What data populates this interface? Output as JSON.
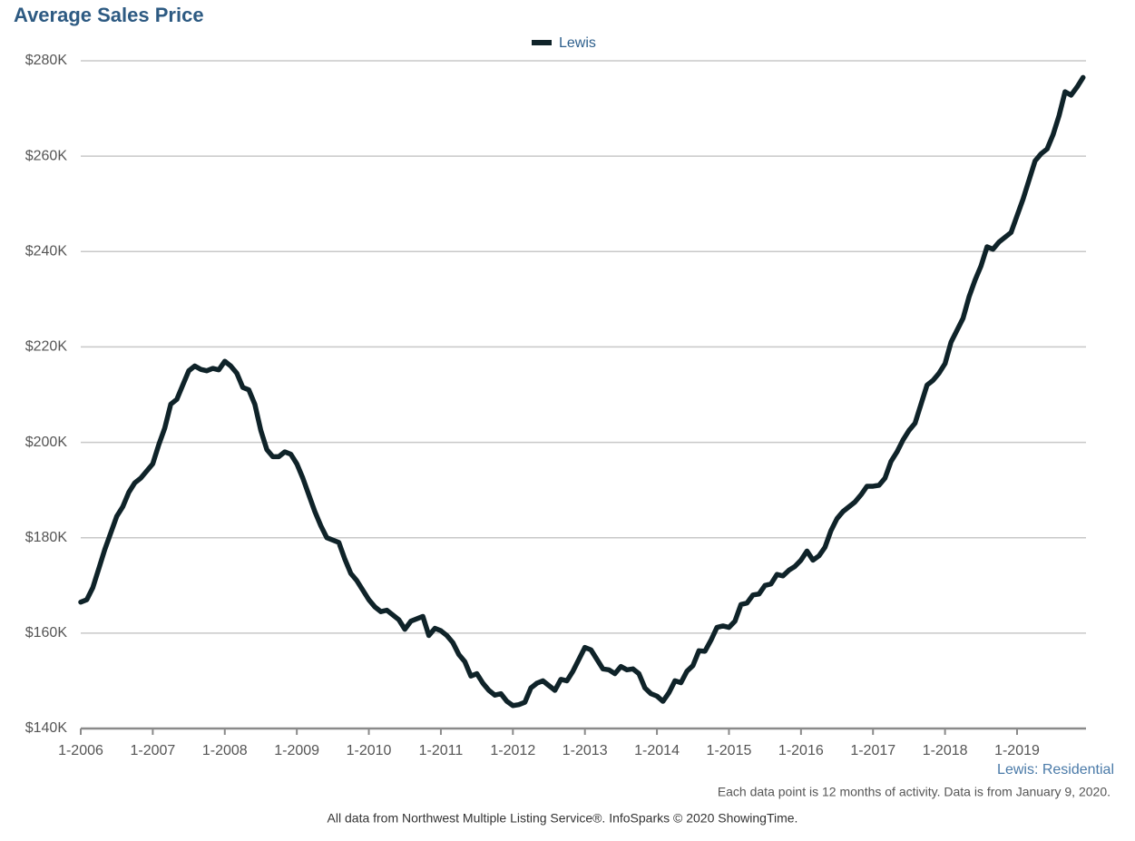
{
  "chart_data": {
    "type": "line",
    "title": "Average Sales Price",
    "subtitle": "Lewis: Residential",
    "annotations": [
      "Each data point is 12 months of activity. Data is from January 9, 2020.",
      "All data from Northwest Multiple Listing Service®. InfoSparks © 2020 ShowingTime."
    ],
    "categories": [
      "1-2006",
      null,
      null,
      null,
      null,
      null,
      null,
      null,
      null,
      null,
      null,
      null,
      "1-2007",
      null,
      null,
      null,
      null,
      null,
      null,
      null,
      null,
      null,
      null,
      null,
      "1-2008",
      null,
      null,
      null,
      null,
      null,
      null,
      null,
      null,
      null,
      null,
      null,
      "1-2009",
      null,
      null,
      null,
      null,
      null,
      null,
      null,
      null,
      null,
      null,
      null,
      "1-2010",
      null,
      null,
      null,
      null,
      null,
      null,
      null,
      null,
      null,
      null,
      null,
      "1-2011",
      null,
      null,
      null,
      null,
      null,
      null,
      null,
      null,
      null,
      null,
      null,
      "1-2012",
      null,
      null,
      null,
      null,
      null,
      null,
      null,
      null,
      null,
      null,
      null,
      "1-2013",
      null,
      null,
      null,
      null,
      null,
      null,
      null,
      null,
      null,
      null,
      null,
      "1-2014",
      null,
      null,
      null,
      null,
      null,
      null,
      null,
      null,
      null,
      null,
      null,
      "1-2015",
      null,
      null,
      null,
      null,
      null,
      null,
      null,
      null,
      null,
      null,
      null,
      "1-2016",
      null,
      null,
      null,
      null,
      null,
      null,
      null,
      null,
      null,
      null,
      null,
      "1-2017",
      null,
      null,
      null,
      null,
      null,
      null,
      null,
      null,
      null,
      null,
      null,
      "1-2018",
      null,
      null,
      null,
      null,
      null,
      null,
      null,
      null,
      null,
      null,
      null,
      "1-2019",
      null,
      null,
      null,
      null,
      null,
      null,
      null,
      null,
      null,
      null,
      null
    ],
    "series": [
      {
        "name": "Lewis",
        "color": "#0f2329",
        "values": [
          166500,
          167000,
          169500,
          173500,
          177500,
          181000,
          184500,
          186500,
          189500,
          191500,
          192500,
          194000,
          195500,
          199500,
          203000,
          208000,
          209000,
          212000,
          215000,
          216000,
          215300,
          215000,
          215500,
          215200,
          217000,
          216000,
          214500,
          211500,
          211000,
          208000,
          202500,
          198500,
          197000,
          197000,
          198000,
          197500,
          195500,
          192500,
          189000,
          185500,
          182500,
          180000,
          179500,
          179000,
          175500,
          172500,
          171000,
          169000,
          167000,
          165500,
          164500,
          164800,
          163800,
          162800,
          160800,
          162500,
          163000,
          163500,
          159500,
          161000,
          160500,
          159500,
          158000,
          155500,
          154000,
          151000,
          151500,
          149500,
          148000,
          147000,
          147300,
          145700,
          144800,
          145000,
          145500,
          148500,
          149500,
          150000,
          149000,
          148000,
          150300,
          150000,
          152000,
          154500,
          157000,
          156500,
          154500,
          152500,
          152300,
          151500,
          153000,
          152300,
          152500,
          151500,
          148500,
          147300,
          146800,
          145700,
          147500,
          150000,
          149600,
          152000,
          153200,
          156300,
          156200,
          158500,
          161200,
          161500,
          161200,
          162500,
          166000,
          166300,
          168000,
          168200,
          170000,
          170300,
          172300,
          172000,
          173200,
          174000,
          175300,
          177200,
          175300,
          176200,
          178000,
          181500,
          184000,
          185500,
          186500,
          187500,
          189000,
          190800,
          190800,
          191000,
          192500,
          196000,
          198000,
          200500,
          202500,
          204000,
          208000,
          212000,
          213000,
          214500,
          216500,
          221000,
          223500,
          226000,
          230500,
          234000,
          237000,
          241000,
          240500,
          242000,
          243000,
          244000,
          247500,
          251000,
          255000,
          259000,
          260500,
          261500,
          264500,
          268500,
          273500,
          272800,
          274500,
          276500
        ]
      }
    ],
    "ylim": [
      140000,
      280000
    ],
    "yticks": [
      {
        "value": 140000,
        "label": "$140K"
      },
      {
        "value": 160000,
        "label": "$160K"
      },
      {
        "value": 180000,
        "label": "$180K"
      },
      {
        "value": 200000,
        "label": "$200K"
      },
      {
        "value": 220000,
        "label": "$220K"
      },
      {
        "value": 240000,
        "label": "$240K"
      },
      {
        "value": 260000,
        "label": "$260K"
      },
      {
        "value": 280000,
        "label": "$280K"
      }
    ],
    "grid": true,
    "legend": "top"
  }
}
